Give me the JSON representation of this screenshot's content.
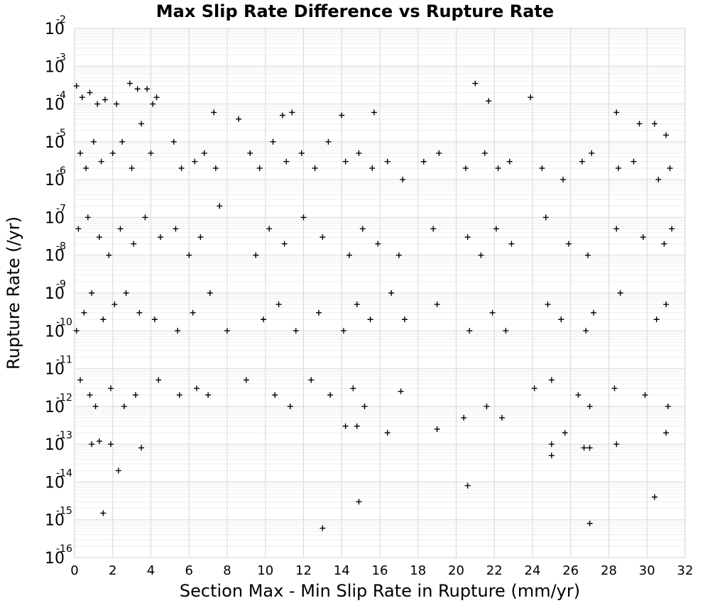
{
  "chart_data": {
    "type": "scatter",
    "title": "Max Slip Rate Difference vs Rupture Rate",
    "xlabel": "Section Max - Min Slip Rate in Rupture (mm/yr)",
    "ylabel": "Rupture Rate (/yr)",
    "xlim": [
      0,
      32
    ],
    "ylim": [
      1e-16,
      0.01
    ],
    "yscale": "log",
    "grid": true,
    "marker": "+",
    "marker_color": "#000000",
    "x_ticks": [
      "0",
      "2",
      "4",
      "6",
      "8",
      "10",
      "12",
      "14",
      "16",
      "18",
      "20",
      "22",
      "24",
      "26",
      "28",
      "30",
      "32"
    ],
    "y_ticks": [
      {
        "base": "10",
        "exp": "-2"
      },
      {
        "base": "10",
        "exp": "-3"
      },
      {
        "base": "10",
        "exp": "-4"
      },
      {
        "base": "10",
        "exp": "-5"
      },
      {
        "base": "10",
        "exp": "-6"
      },
      {
        "base": "10",
        "exp": "-7"
      },
      {
        "base": "10",
        "exp": "-8"
      },
      {
        "base": "10",
        "exp": "-9"
      },
      {
        "base": "10",
        "exp": "-10"
      },
      {
        "base": "10",
        "exp": "-11"
      },
      {
        "base": "10",
        "exp": "-12"
      },
      {
        "base": "10",
        "exp": "-13"
      },
      {
        "base": "10",
        "exp": "-14"
      },
      {
        "base": "10",
        "exp": "-15"
      },
      {
        "base": "10",
        "exp": "-16"
      }
    ],
    "series": [
      {
        "points": [
          [
            0.1,
            0.0003
          ],
          [
            0.4,
            0.00015
          ],
          [
            0.8,
            0.0002
          ],
          [
            1.2,
            0.0001
          ],
          [
            1.6,
            0.00013
          ],
          [
            2.2,
            0.0001
          ],
          [
            2.9,
            0.00035
          ],
          [
            3.3,
            0.00025
          ],
          [
            3.8,
            0.00025
          ],
          [
            4.1,
            0.0001
          ],
          [
            4.3,
            0.00015
          ],
          [
            7.3,
            6e-05
          ],
          [
            8.6,
            4e-05
          ],
          [
            10.9,
            5e-05
          ],
          [
            11.4,
            6e-05
          ],
          [
            14.0,
            5e-05
          ],
          [
            15.7,
            6e-05
          ],
          [
            21.0,
            0.00035
          ],
          [
            21.7,
            0.00012
          ],
          [
            23.9,
            0.00015
          ],
          [
            28.4,
            6e-05
          ],
          [
            29.6,
            3e-05
          ],
          [
            30.4,
            3e-05
          ],
          [
            31.0,
            1.5e-05
          ],
          [
            0.3,
            5e-06
          ],
          [
            0.6,
            2e-06
          ],
          [
            1.0,
            1e-05
          ],
          [
            1.4,
            3e-06
          ],
          [
            2.0,
            5e-06
          ],
          [
            2.5,
            1e-05
          ],
          [
            3.0,
            2e-06
          ],
          [
            3.5,
            3e-05
          ],
          [
            4.0,
            5e-06
          ],
          [
            5.2,
            1e-05
          ],
          [
            5.6,
            2e-06
          ],
          [
            6.3,
            3e-06
          ],
          [
            6.8,
            5e-06
          ],
          [
            7.4,
            2e-06
          ],
          [
            9.2,
            5e-06
          ],
          [
            9.7,
            2e-06
          ],
          [
            10.4,
            1e-05
          ],
          [
            11.1,
            3e-06
          ],
          [
            11.9,
            5e-06
          ],
          [
            12.6,
            2e-06
          ],
          [
            13.3,
            1e-05
          ],
          [
            14.2,
            3e-06
          ],
          [
            14.9,
            5e-06
          ],
          [
            15.6,
            2e-06
          ],
          [
            16.4,
            3e-06
          ],
          [
            17.2,
            1e-06
          ],
          [
            18.3,
            3e-06
          ],
          [
            19.1,
            5e-06
          ],
          [
            20.5,
            2e-06
          ],
          [
            21.5,
            5e-06
          ],
          [
            22.2,
            2e-06
          ],
          [
            22.8,
            3e-06
          ],
          [
            24.5,
            2e-06
          ],
          [
            25.6,
            1e-06
          ],
          [
            26.6,
            3e-06
          ],
          [
            27.1,
            5e-06
          ],
          [
            28.5,
            2e-06
          ],
          [
            29.3,
            3e-06
          ],
          [
            30.6,
            1e-06
          ],
          [
            31.2,
            2e-06
          ],
          [
            0.2,
            5e-08
          ],
          [
            0.7,
            1e-07
          ],
          [
            1.3,
            3e-08
          ],
          [
            1.8,
            1e-08
          ],
          [
            2.4,
            5e-08
          ],
          [
            3.1,
            2e-08
          ],
          [
            3.7,
            1e-07
          ],
          [
            4.5,
            3e-08
          ],
          [
            5.3,
            5e-08
          ],
          [
            6.0,
            1e-08
          ],
          [
            6.6,
            3e-08
          ],
          [
            7.6,
            2e-07
          ],
          [
            9.5,
            1e-08
          ],
          [
            10.2,
            5e-08
          ],
          [
            11.0,
            2e-08
          ],
          [
            12.0,
            1e-07
          ],
          [
            13.0,
            3e-08
          ],
          [
            14.4,
            1e-08
          ],
          [
            15.1,
            5e-08
          ],
          [
            15.9,
            2e-08
          ],
          [
            17.0,
            1e-08
          ],
          [
            18.8,
            5e-08
          ],
          [
            20.6,
            3e-08
          ],
          [
            21.3,
            1e-08
          ],
          [
            22.1,
            5e-08
          ],
          [
            22.9,
            2e-08
          ],
          [
            24.7,
            1e-07
          ],
          [
            25.9,
            2e-08
          ],
          [
            26.9,
            1e-08
          ],
          [
            28.4,
            5e-08
          ],
          [
            29.8,
            3e-08
          ],
          [
            30.9,
            2e-08
          ],
          [
            31.3,
            5e-08
          ],
          [
            0.1,
            1e-10
          ],
          [
            0.5,
            3e-10
          ],
          [
            0.9,
            1e-09
          ],
          [
            1.5,
            2e-10
          ],
          [
            2.1,
            5e-10
          ],
          [
            2.7,
            1e-09
          ],
          [
            3.4,
            3e-10
          ],
          [
            4.2,
            2e-10
          ],
          [
            5.4,
            1e-10
          ],
          [
            6.2,
            3e-10
          ],
          [
            7.1,
            1e-09
          ],
          [
            8.0,
            1e-10
          ],
          [
            9.9,
            2e-10
          ],
          [
            10.7,
            5e-10
          ],
          [
            11.6,
            1e-10
          ],
          [
            12.8,
            3e-10
          ],
          [
            14.1,
            1e-10
          ],
          [
            14.8,
            5e-10
          ],
          [
            15.5,
            2e-10
          ],
          [
            16.6,
            1e-09
          ],
          [
            17.3,
            2e-10
          ],
          [
            19.0,
            5e-10
          ],
          [
            20.7,
            1e-10
          ],
          [
            21.9,
            3e-10
          ],
          [
            22.6,
            1e-10
          ],
          [
            24.8,
            5e-10
          ],
          [
            25.5,
            2e-10
          ],
          [
            26.8,
            1e-10
          ],
          [
            27.2,
            3e-10
          ],
          [
            28.6,
            1e-09
          ],
          [
            30.5,
            2e-10
          ],
          [
            31.0,
            5e-10
          ],
          [
            0.3,
            5e-12
          ],
          [
            0.8,
            2e-12
          ],
          [
            1.1,
            1e-12
          ],
          [
            1.9,
            3e-12
          ],
          [
            2.6,
            1e-12
          ],
          [
            3.2,
            2e-12
          ],
          [
            4.4,
            5e-12
          ],
          [
            5.5,
            2e-12
          ],
          [
            6.4,
            3e-12
          ],
          [
            7.0,
            2e-12
          ],
          [
            9.0,
            5e-12
          ],
          [
            10.5,
            2e-12
          ],
          [
            11.3,
            1e-12
          ],
          [
            12.4,
            5e-12
          ],
          [
            13.4,
            2e-12
          ],
          [
            14.6,
            3e-12
          ],
          [
            15.2,
            1e-12
          ],
          [
            17.1,
            2.5e-12
          ],
          [
            20.4,
            5e-13
          ],
          [
            21.6,
            1e-12
          ],
          [
            22.4,
            5e-13
          ],
          [
            24.1,
            3e-12
          ],
          [
            25.0,
            5e-12
          ],
          [
            26.4,
            2e-12
          ],
          [
            27.0,
            1e-12
          ],
          [
            28.3,
            3e-12
          ],
          [
            29.9,
            2e-12
          ],
          [
            31.1,
            1e-12
          ],
          [
            0.9,
            1e-13
          ],
          [
            1.3,
            1.2e-13
          ],
          [
            1.9,
            1e-13
          ],
          [
            3.5,
            8e-14
          ],
          [
            14.2,
            3e-13
          ],
          [
            14.8,
            3e-13
          ],
          [
            16.4,
            2e-13
          ],
          [
            19.0,
            2.5e-13
          ],
          [
            25.0,
            1e-13
          ],
          [
            25.0,
            5e-14
          ],
          [
            25.7,
            2e-13
          ],
          [
            26.7,
            8e-14
          ],
          [
            27.0,
            8e-14
          ],
          [
            28.4,
            1e-13
          ],
          [
            31.0,
            2e-13
          ],
          [
            2.3,
            2e-14
          ],
          [
            20.6,
            8e-15
          ],
          [
            14.9,
            3e-15
          ],
          [
            30.4,
            4e-15
          ],
          [
            1.5,
            1.5e-15
          ],
          [
            13.0,
            6e-16
          ],
          [
            27.0,
            8e-16
          ]
        ]
      }
    ]
  }
}
